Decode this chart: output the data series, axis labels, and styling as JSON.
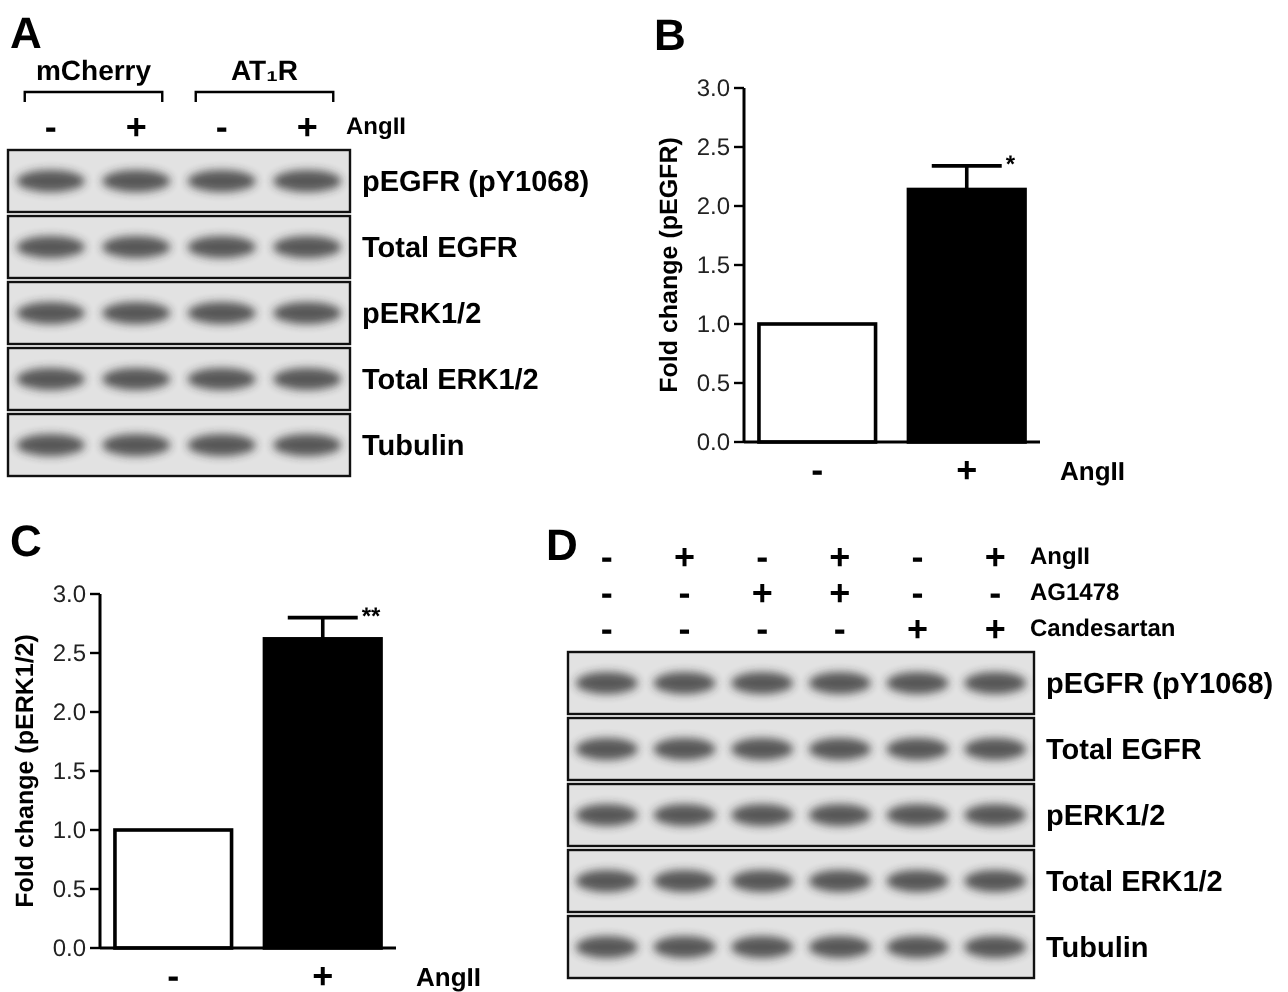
{
  "chart_data": [
    {
      "type": "other",
      "title": "A",
      "categories": [
        "mCherry",
        "AT₁R"
      ],
      "cell_labels": [
        [
          "-",
          "+",
          "-",
          "+"
        ]
      ],
      "y2_categories": [
        "AngII"
      ],
      "y_categories": [
        "pEGFR (pY1068)",
        "Total EGFR",
        "pERK1/2",
        "Total ERK1/2",
        "Tubulin"
      ]
    },
    {
      "type": "bar",
      "title": "B",
      "categories": [
        "-",
        "+"
      ],
      "values": [
        1.0,
        2.14
      ],
      "colors": [
        "#ffffff",
        "#000000"
      ],
      "errors": [
        null,
        0.2
      ],
      "ylim": [
        0,
        3
      ],
      "yticks": [
        {
          "value": 0,
          "label": "0.0"
        },
        0.5,
        {
          "value": 1,
          "label": "1.0"
        },
        1.5,
        {
          "value": 2,
          "label": "2.0"
        },
        2.5,
        {
          "value": 3,
          "label": "3.0"
        }
      ],
      "ylabel": "Fold change (pEGFR)",
      "xlabel": "AngII",
      "annotations": [
        {
          "text": "*",
          "x": "+",
          "y": 2.34
        }
      ]
    },
    {
      "type": "bar",
      "title": "C",
      "categories": [
        "-",
        "+"
      ],
      "values": [
        1.0,
        2.62
      ],
      "colors": [
        "#ffffff",
        "#000000"
      ],
      "errors": [
        null,
        0.18
      ],
      "ylim": [
        0,
        3
      ],
      "yticks": [
        {
          "value": 0,
          "label": "0.0"
        },
        0.5,
        {
          "value": 1,
          "label": "1.0"
        },
        1.5,
        {
          "value": 2,
          "label": "2.0"
        },
        2.5,
        {
          "value": 3,
          "label": "3.0"
        }
      ],
      "ylabel": "Fold change (pERK1/2)",
      "xlabel": "AngII",
      "annotations": [
        {
          "text": "**",
          "x": "+",
          "y": 2.8
        }
      ]
    },
    {
      "type": "other",
      "title": "D",
      "cell_labels": [
        [
          "-",
          "+",
          "-",
          "+",
          "-",
          "+"
        ],
        [
          "-",
          "-",
          "+",
          "+",
          "-",
          "-"
        ],
        [
          "-",
          "-",
          "-",
          "-",
          "+",
          "+"
        ]
      ],
      "y2_categories": [
        "AngII",
        "AG1478",
        "Candesartan"
      ],
      "y_categories": [
        "pEGFR (pY1068)",
        "Total EGFR",
        "pERK1/2",
        "Total ERK1/2",
        "Tubulin"
      ]
    }
  ]
}
